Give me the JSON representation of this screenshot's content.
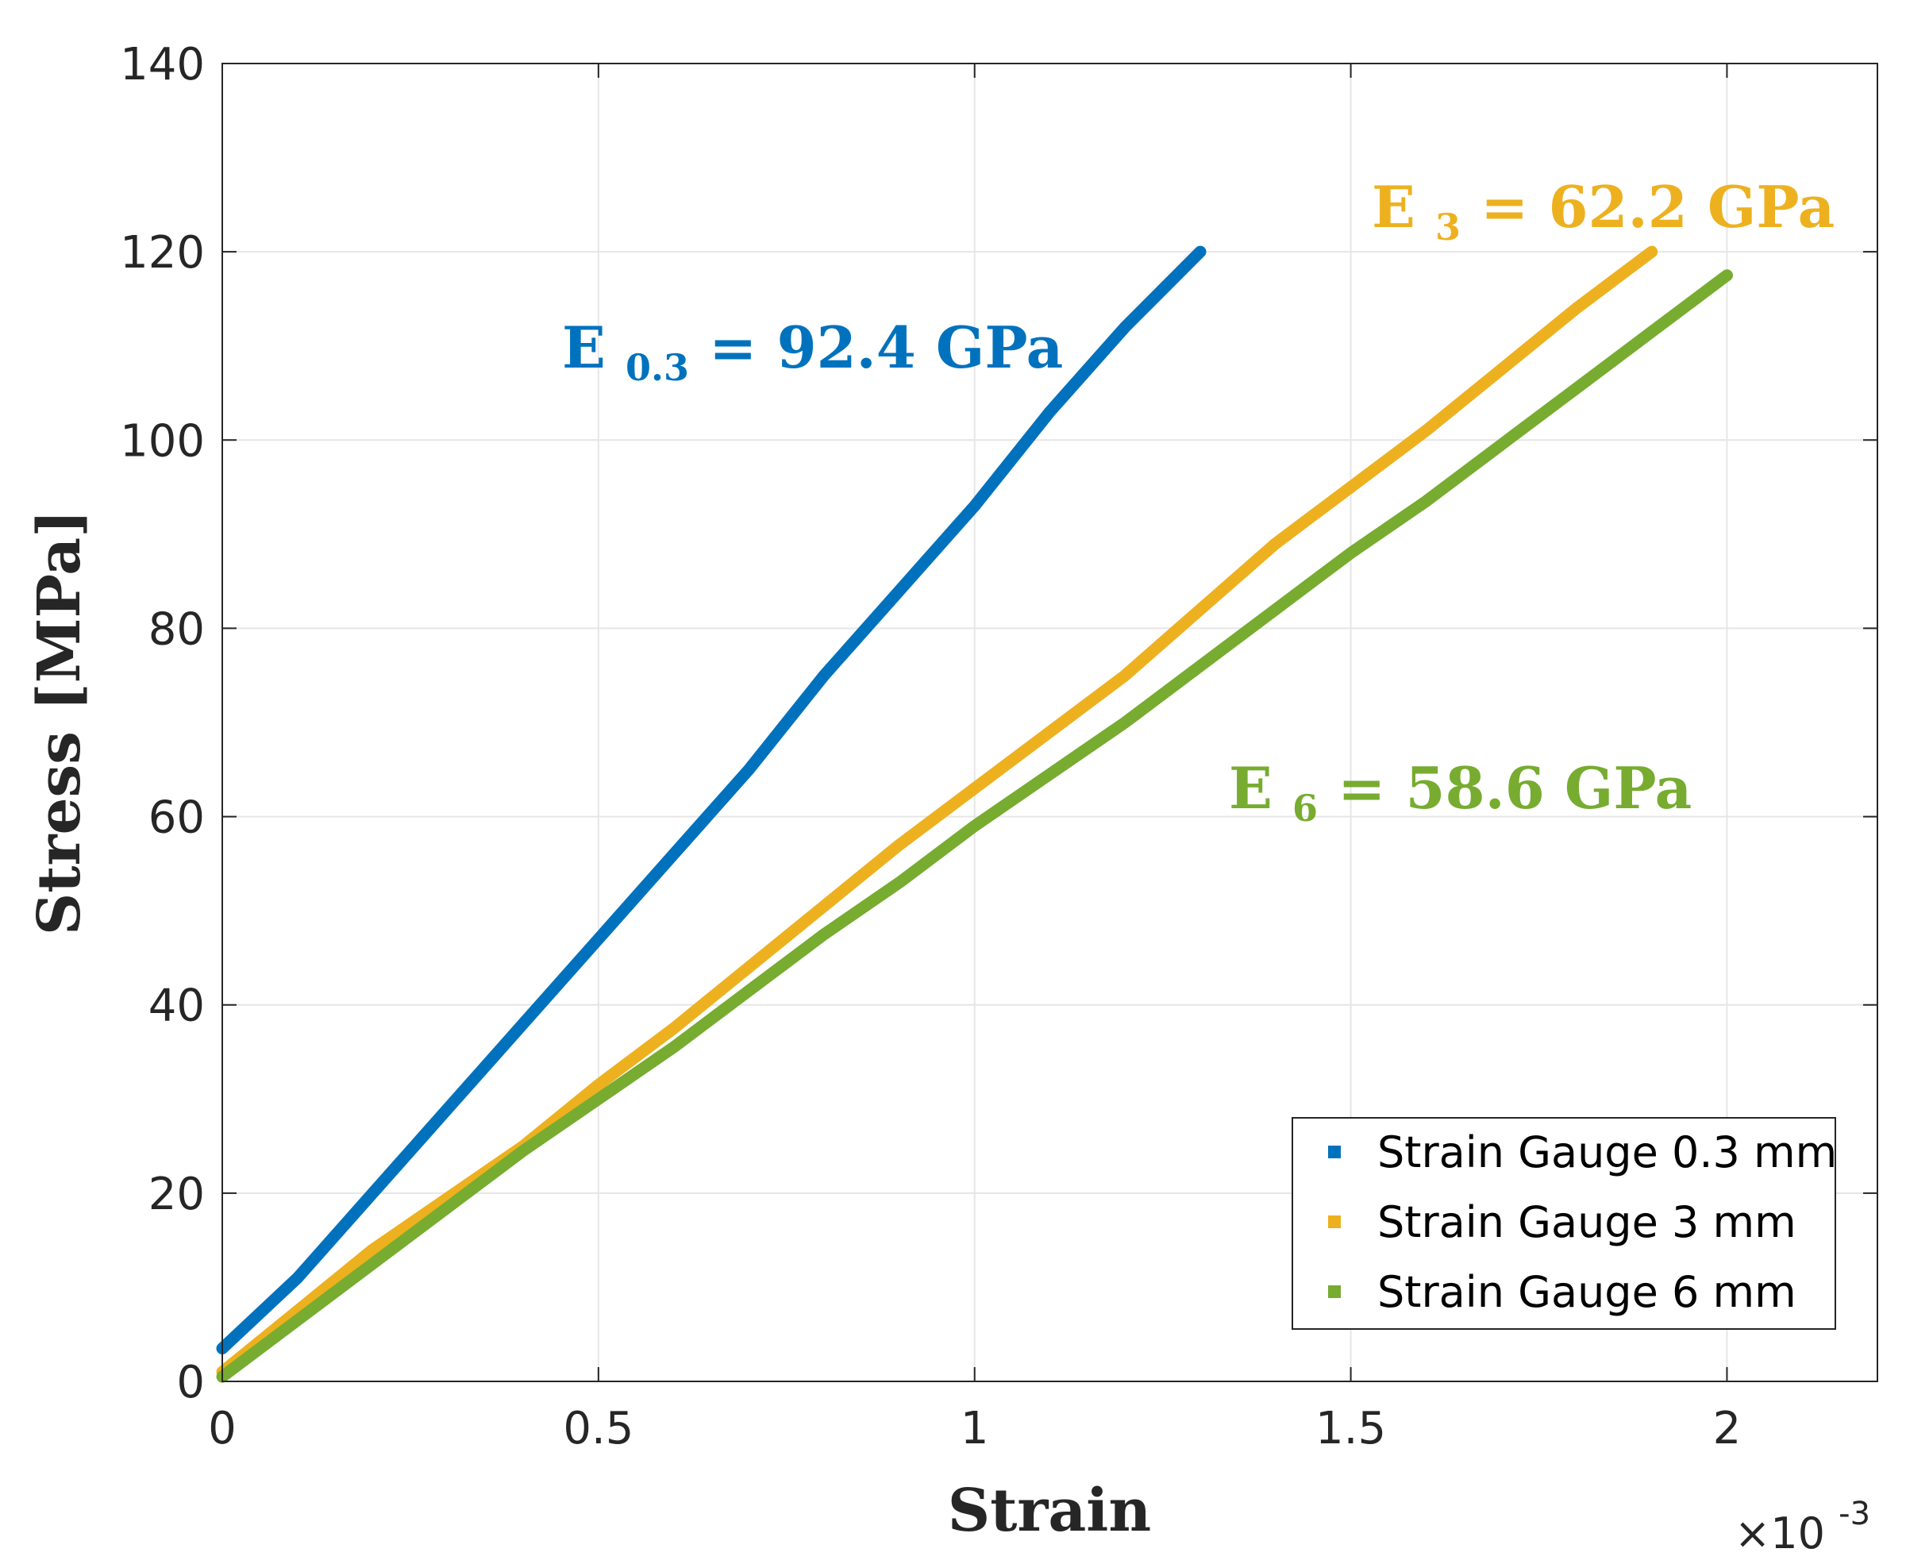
{
  "chart_data": {
    "type": "line",
    "title": "",
    "xlabel": "Strain",
    "ylabel": "Stress [MPa]",
    "x_exponent": {
      "prefix": "×10",
      "power": "-3"
    },
    "xlim": [
      0,
      2.2
    ],
    "ylim": [
      0,
      140
    ],
    "x_ticks": [
      {
        "value": 0,
        "label": "0"
      },
      {
        "value": 0.5,
        "label": "0.5"
      },
      {
        "value": 1,
        "label": "1"
      },
      {
        "value": 1.5,
        "label": "1.5"
      },
      {
        "value": 2,
        "label": "2"
      }
    ],
    "y_ticks": [
      {
        "value": 0,
        "label": "0"
      },
      {
        "value": 20,
        "label": "20"
      },
      {
        "value": 40,
        "label": "40"
      },
      {
        "value": 60,
        "label": "60"
      },
      {
        "value": 80,
        "label": "80"
      },
      {
        "value": 100,
        "label": "100"
      },
      {
        "value": 120,
        "label": "120"
      },
      {
        "value": 140,
        "label": "140"
      }
    ],
    "grid": true,
    "legend_position": "bottom-right",
    "series": [
      {
        "name": "Strain Gauge 0.3 mm",
        "color": "#0072BD",
        "x": [
          0,
          0.1,
          0.2,
          0.3,
          0.4,
          0.5,
          0.6,
          0.7,
          0.8,
          0.9,
          1.0,
          1.1,
          1.2,
          1.3
        ],
        "y": [
          3.5,
          11,
          20,
          29,
          38,
          47,
          56,
          65,
          75,
          84,
          93,
          103,
          112,
          120
        ]
      },
      {
        "name": "Strain Gauge 3 mm",
        "color": "#EDB120",
        "x": [
          0,
          0.1,
          0.2,
          0.3,
          0.4,
          0.5,
          0.6,
          0.7,
          0.8,
          0.9,
          1.0,
          1.1,
          1.2,
          1.3,
          1.4,
          1.5,
          1.6,
          1.7,
          1.8,
          1.9
        ],
        "y": [
          1,
          7.5,
          14,
          19.5,
          25,
          31.5,
          37.5,
          44,
          50.5,
          57,
          63,
          69,
          75,
          82,
          89,
          95,
          101,
          107.5,
          114,
          120
        ]
      },
      {
        "name": "Strain Gauge 6 mm",
        "color": "#77AC30",
        "x": [
          0,
          0.1,
          0.2,
          0.3,
          0.4,
          0.5,
          0.6,
          0.7,
          0.8,
          0.9,
          1.0,
          1.1,
          1.2,
          1.3,
          1.4,
          1.5,
          1.6,
          1.7,
          1.8,
          1.9,
          2.0
        ],
        "y": [
          0.5,
          6.5,
          12.5,
          18.5,
          24.5,
          30,
          35.5,
          41.5,
          47.5,
          53,
          59,
          64.5,
          70,
          76,
          82,
          88,
          93.5,
          99.5,
          105.5,
          111.5,
          117.5
        ]
      }
    ],
    "annotations": [
      {
        "base": "E",
        "subscript": "0.3",
        "text": " = 92.4 GPa",
        "color": "#0072BD"
      },
      {
        "base": "E",
        "subscript": "3",
        "text": " = 62.2 GPa",
        "color": "#EDB120"
      },
      {
        "base": "E",
        "subscript": "6",
        "text": " = 58.6 GPa",
        "color": "#77AC30"
      }
    ]
  }
}
